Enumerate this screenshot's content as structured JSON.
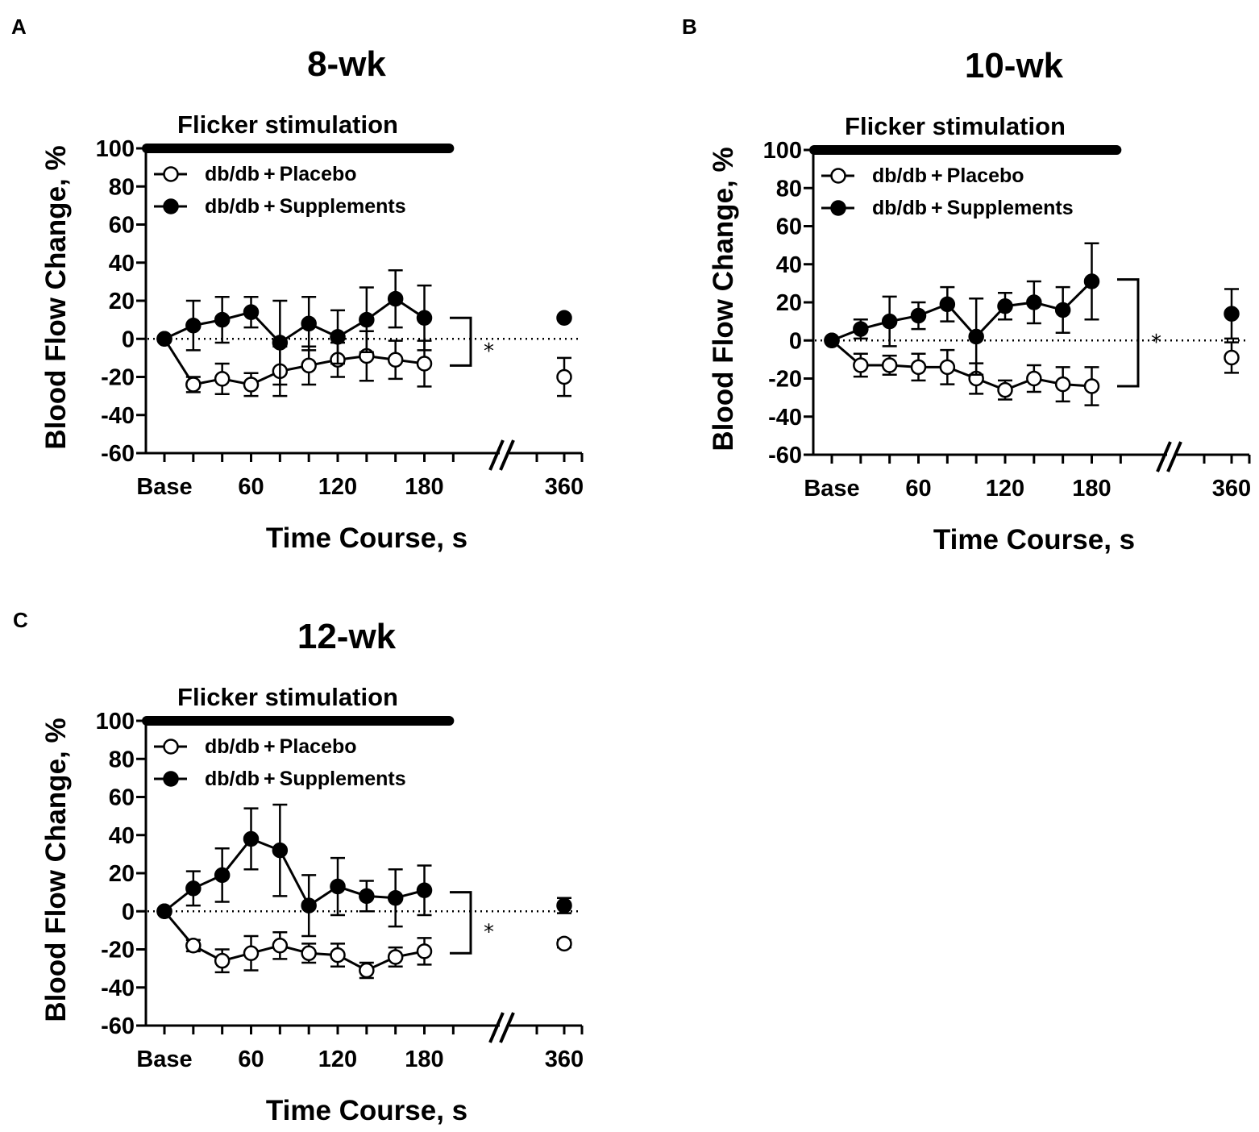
{
  "colors": {
    "ink": "#000000",
    "background": "#ffffff",
    "open_marker_fill": "#ffffff"
  },
  "chart_data": [
    {
      "panel": "A",
      "type": "line",
      "title": "8-wk",
      "stimulation_label": "Flicker stimulation",
      "xlabel": "Time Course, s",
      "ylabel": "Blood Flow Change, %",
      "ylim": [
        -60,
        100
      ],
      "yticks": [
        100,
        80,
        60,
        40,
        20,
        0,
        -20,
        -40,
        -60
      ],
      "xtick_labels": [
        "Base",
        "60",
        "120",
        "180",
        "360"
      ],
      "stim_range": [
        -5,
        200
      ],
      "axis_break": true,
      "reference_line_y": 0,
      "significance": {
        "label": "*",
        "y_range": [
          -14,
          11
        ]
      },
      "series": [
        {
          "name": "db/db + Placebo",
          "legend_label": "db/db + Placebo",
          "marker": "open",
          "x": [
            0,
            20,
            40,
            60,
            80,
            100,
            120,
            140,
            160,
            180
          ],
          "y": [
            0,
            -24,
            -21,
            -24,
            -17,
            -14,
            -11,
            -9,
            -11,
            -13
          ],
          "err": [
            0,
            4,
            8,
            6,
            13,
            10,
            9,
            13,
            10,
            12
          ],
          "late": {
            "x": 360,
            "y": -20,
            "err": 10
          }
        },
        {
          "name": "db/db + Supplements",
          "legend_label": "db/db + Supplements",
          "marker": "filled",
          "x": [
            0,
            20,
            40,
            60,
            80,
            100,
            120,
            140,
            160,
            180
          ],
          "y": [
            0,
            7,
            10,
            14,
            -2,
            8,
            1,
            10,
            21,
            11
          ],
          "err": [
            0,
            13,
            12,
            8,
            22,
            14,
            14,
            17,
            15,
            17
          ],
          "late": {
            "x": 360,
            "y": 11,
            "err": 0
          }
        }
      ]
    },
    {
      "panel": "B",
      "type": "line",
      "title": "10-wk",
      "stimulation_label": "Flicker stimulation",
      "xlabel": "Time Course, s",
      "ylabel": "Blood Flow Change, %",
      "ylim": [
        -60,
        100
      ],
      "yticks": [
        100,
        80,
        60,
        40,
        20,
        0,
        -20,
        -40,
        -60
      ],
      "xtick_labels": [
        "Base",
        "60",
        "120",
        "180",
        "360"
      ],
      "stim_range": [
        -5,
        200
      ],
      "axis_break": true,
      "reference_line_y": 0,
      "significance": {
        "label": "*",
        "y_range": [
          -24,
          32
        ]
      },
      "series": [
        {
          "name": "db/db + Placebo",
          "legend_label": "db/db + Placebo",
          "marker": "open",
          "x": [
            0,
            20,
            40,
            60,
            80,
            100,
            120,
            140,
            160,
            180
          ],
          "y": [
            0,
            -13,
            -13,
            -14,
            -14,
            -20,
            -26,
            -20,
            -23,
            -24
          ],
          "err": [
            0,
            6,
            5,
            7,
            9,
            8,
            5,
            7,
            9,
            10
          ],
          "late": {
            "x": 360,
            "y": -9,
            "err": 8
          }
        },
        {
          "name": "db/db + Supplements",
          "legend_label": "db/db + Supplements",
          "marker": "filled",
          "x": [
            0,
            20,
            40,
            60,
            80,
            100,
            120,
            140,
            160,
            180
          ],
          "y": [
            0,
            6,
            10,
            13,
            19,
            2,
            18,
            20,
            16,
            31
          ],
          "err": [
            0,
            5,
            13,
            7,
            9,
            20,
            7,
            11,
            12,
            20
          ],
          "late": {
            "x": 360,
            "y": 14,
            "err": 13
          }
        }
      ]
    },
    {
      "panel": "C",
      "type": "line",
      "title": "12-wk",
      "stimulation_label": "Flicker stimulation",
      "xlabel": "Time Course, s",
      "ylabel": "Blood Flow Change, %",
      "ylim": [
        -60,
        100
      ],
      "yticks": [
        100,
        80,
        60,
        40,
        20,
        0,
        -20,
        -40,
        -60
      ],
      "xtick_labels": [
        "Base",
        "60",
        "120",
        "180",
        "360"
      ],
      "stim_range": [
        -5,
        200
      ],
      "axis_break": true,
      "reference_line_y": 0,
      "significance": {
        "label": "*",
        "y_range": [
          -22,
          10
        ]
      },
      "series": [
        {
          "name": "db/db + Placebo",
          "legend_label": "db/db + Placebo",
          "marker": "open",
          "x": [
            0,
            20,
            40,
            60,
            80,
            100,
            120,
            140,
            160,
            180
          ],
          "y": [
            0,
            -18,
            -26,
            -22,
            -18,
            -22,
            -23,
            -31,
            -24,
            -21
          ],
          "err": [
            0,
            3,
            6,
            9,
            7,
            5,
            6,
            4,
            5,
            7
          ],
          "late": {
            "x": 360,
            "y": -17,
            "err": 2
          }
        },
        {
          "name": "db/db + Supplements",
          "legend_label": "db/db + Supplements",
          "marker": "filled",
          "x": [
            0,
            20,
            40,
            60,
            80,
            100,
            120,
            140,
            160,
            180
          ],
          "y": [
            0,
            12,
            19,
            38,
            32,
            3,
            13,
            8,
            7,
            11
          ],
          "err": [
            0,
            9,
            14,
            16,
            24,
            16,
            15,
            8,
            15,
            13
          ],
          "late": {
            "x": 360,
            "y": 3,
            "err": 4
          }
        }
      ]
    }
  ]
}
